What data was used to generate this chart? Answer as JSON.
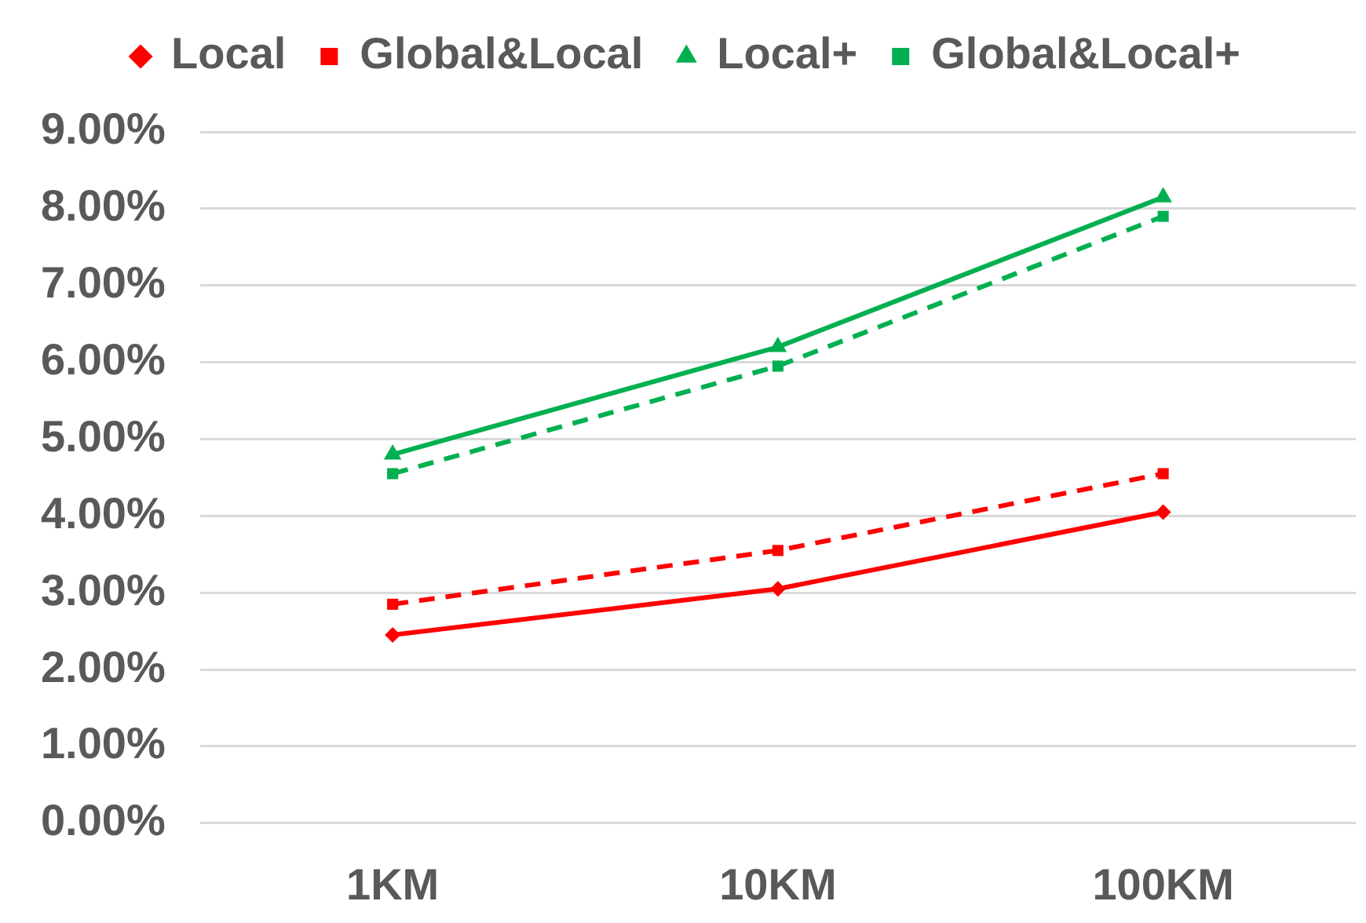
{
  "chart_data": {
    "type": "line",
    "categories": [
      "1KM",
      "10KM",
      "100KM"
    ],
    "series": [
      {
        "name": "Local",
        "color": "#ff0000",
        "values": [
          2.45,
          3.05,
          4.05
        ],
        "marker": "diamond",
        "line_style": "solid"
      },
      {
        "name": "Global&Local",
        "color": "#ff0000",
        "values": [
          2.85,
          3.55,
          4.55
        ],
        "marker": "square",
        "line_style": "dashed"
      },
      {
        "name": "Local+",
        "color": "#00b050",
        "values": [
          4.8,
          6.2,
          8.15
        ],
        "marker": "triangle",
        "line_style": "solid"
      },
      {
        "name": "Global&Local+",
        "color": "#00b050",
        "values": [
          4.55,
          5.95,
          7.9
        ],
        "marker": "square",
        "line_style": "dashed"
      }
    ],
    "ylim": [
      0,
      9
    ],
    "yticks": [
      {
        "value": 0,
        "label": "0.00%"
      },
      {
        "value": 1,
        "label": "1.00%"
      },
      {
        "value": 2,
        "label": "2.00%"
      },
      {
        "value": 3,
        "label": "3.00%"
      },
      {
        "value": 4,
        "label": "4.00%"
      },
      {
        "value": 5,
        "label": "5.00%"
      },
      {
        "value": 6,
        "label": "6.00%"
      },
      {
        "value": 7,
        "label": "7.00%"
      },
      {
        "value": 8,
        "label": "8.00%"
      },
      {
        "value": 9,
        "label": "9.00%"
      }
    ],
    "grid": "y",
    "legend": "top"
  }
}
